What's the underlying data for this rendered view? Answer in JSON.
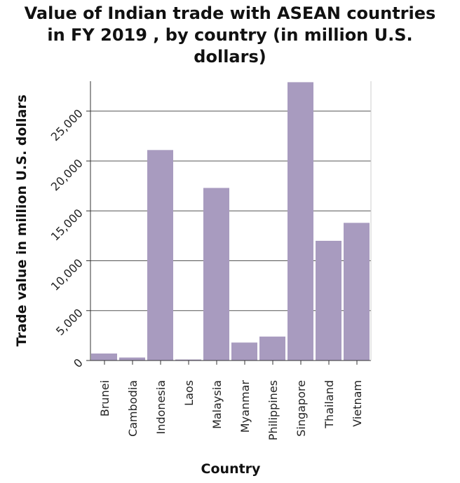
{
  "chart_data": {
    "type": "bar",
    "title_lines": [
      "Value of Indian trade with ASEAN countries",
      "in FY 2019 , by country (in million U.S.",
      "dollars)"
    ],
    "xlabel": "Country",
    "ylabel": "Trade value in million U.S. dollars",
    "categories": [
      "Brunei",
      "Cambodia",
      "Indonesia",
      "Laos",
      "Malaysia",
      "Myanmar",
      "Philippines",
      "Singapore",
      "Thailand",
      "Vietnam"
    ],
    "values": [
      700,
      300,
      21100,
      100,
      17300,
      1800,
      2400,
      27900,
      12000,
      13800
    ],
    "ylim": [
      0,
      28000
    ],
    "yticks": [
      0,
      5000,
      10000,
      15000,
      20000,
      25000
    ],
    "ytick_labels": [
      "0",
      "5,000",
      "10,000",
      "15,000",
      "20,000",
      "25,000"
    ],
    "grid": true,
    "bar_color": "#a89bbf"
  }
}
